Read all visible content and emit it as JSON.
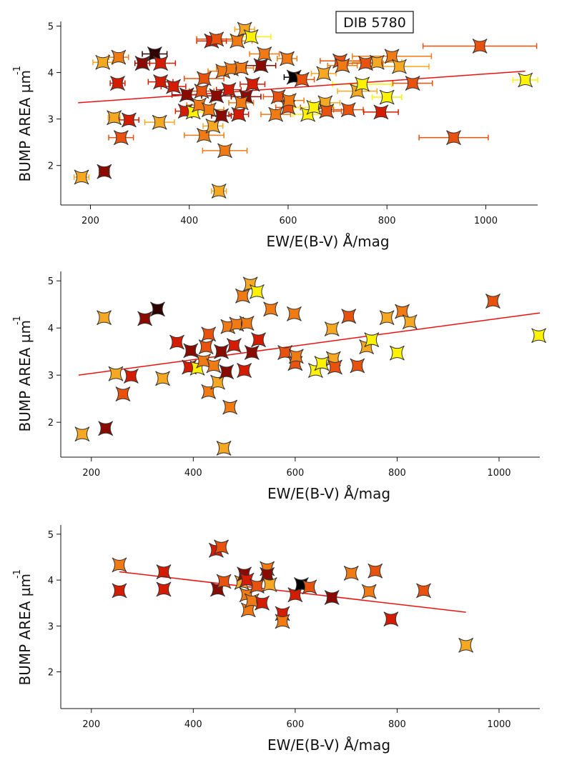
{
  "chart_data": [
    {
      "type": "scatter",
      "annotation": "DIB 5780",
      "x_label": "EW/E(B-V) Å/mag",
      "y_label": "BUMP AREA µm",
      "y_label_sup": "-1",
      "xlim": [
        140,
        1105
      ],
      "ylim": [
        1.15,
        5.1
      ],
      "xticks": [
        200,
        400,
        600,
        800,
        1000
      ],
      "yticks": [
        2,
        3,
        4,
        5
      ],
      "x": [
        182,
        225,
        228,
        248,
        262,
        278,
        305,
        330,
        340,
        368,
        392,
        395,
        408,
        420,
        425,
        430,
        430,
        440,
        448,
        455,
        460,
        465,
        468,
        472,
        480,
        485,
        497,
        500,
        505,
        512,
        515,
        525,
        528,
        552,
        580,
        598,
        600,
        602,
        640,
        652,
        672,
        675,
        678,
        705,
        722,
        740,
        750,
        780,
        800,
        810,
        825,
        988,
        1080,
        255,
        257,
        342,
        342,
        445,
        455,
        545,
        612,
        628,
        710,
        757,
        788,
        852,
        935,
        575,
        505
      ],
      "y": [
        1.75,
        4.22,
        1.87,
        3.03,
        2.6,
        2.98,
        4.2,
        4.4,
        2.93,
        3.7,
        3.17,
        3.52,
        3.15,
        3.3,
        3.6,
        3.87,
        2.65,
        3.2,
        2.85,
        3.5,
        1.45,
        3.07,
        4.03,
        2.32,
        3.63,
        4.08,
        4.68,
        3.1,
        4.1,
        4.93,
        3.48,
        4.77,
        3.75,
        4.4,
        3.48,
        4.3,
        3.25,
        3.4,
        3.1,
        3.25,
        3.98,
        3.35,
        3.17,
        4.25,
        3.2,
        3.6,
        3.75,
        4.22,
        3.47,
        4.35,
        4.13,
        4.57,
        3.84,
        3.77,
        4.33,
        4.2,
        3.8,
        4.68,
        4.72,
        4.15,
        3.9,
        3.85,
        4.15,
        4.2,
        3.15,
        3.77,
        2.6,
        3.1,
        3.35
      ],
      "xerr": [
        15,
        20,
        10,
        12,
        25,
        20,
        15,
        25,
        30,
        25,
        20,
        30,
        20,
        25,
        25,
        40,
        40,
        30,
        20,
        30,
        15,
        20,
        30,
        45,
        25,
        30,
        30,
        20,
        25,
        20,
        30,
        40,
        25,
        30,
        30,
        20,
        25,
        30,
        30,
        40,
        25,
        30,
        30,
        40,
        30,
        40,
        60,
        50,
        30,
        80,
        60,
        115,
        25,
        15,
        20,
        30,
        25,
        30,
        40,
        30,
        20,
        25,
        30,
        35,
        35,
        40,
        70,
        30,
        25
      ],
      "colors": [
        "#f7a823",
        "#f7a823",
        "#8a0a00",
        "#f7a823",
        "#e8520c",
        "#d61c00",
        "#8a0a00",
        "#300000",
        "#f7a823",
        "#d61c00",
        "#d61c00",
        "#8a0a00",
        "#fff200",
        "#f27a12",
        "#e8520c",
        "#e8520c",
        "#f27a12",
        "#f27a12",
        "#f7a823",
        "#8a0a00",
        "#f7a823",
        "#8a0a00",
        "#f27a12",
        "#f27a12",
        "#d61c00",
        "#f27a12",
        "#f27a12",
        "#d61c00",
        "#f27a12",
        "#f7a823",
        "#8a0a00",
        "#fff200",
        "#d61c00",
        "#f27a12",
        "#e8520c",
        "#f27a12",
        "#e8520c",
        "#f27a12",
        "#fff200",
        "#fff200",
        "#f7a823",
        "#f7a823",
        "#e8520c",
        "#e8520c",
        "#e8520c",
        "#f7a823",
        "#fff200",
        "#f7a823",
        "#fff200",
        "#f27a12",
        "#f7a823",
        "#e8520c",
        "#fff200",
        "#d61c00",
        "#f27a12",
        "#d61c00",
        "#d61c00",
        "#d61c00",
        "#e8520c",
        "#8a0a00",
        "#000000",
        "#e8520c",
        "#f27a12",
        "#e8520c",
        "#d61c00",
        "#e8520c",
        "#e8520c",
        "#f27a12",
        "#f27a12"
      ],
      "fit": {
        "x": [
          175,
          1080
        ],
        "y": [
          3.35,
          4.03
        ],
        "color": "#ee1111"
      }
    },
    {
      "type": "scatter",
      "x_label": "EW/E(B-V) Å/mag",
      "y_label": "BUMP AREA µm",
      "y_label_sup": "-1",
      "xlim": [
        140,
        1080
      ],
      "ylim": [
        1.26,
        5.2
      ],
      "xticks": [
        200,
        400,
        600,
        800,
        1000
      ],
      "yticks": [
        2,
        3,
        4,
        5
      ],
      "x": [
        182,
        225,
        228,
        248,
        262,
        278,
        305,
        330,
        340,
        368,
        392,
        395,
        408,
        420,
        425,
        430,
        430,
        440,
        448,
        455,
        460,
        465,
        468,
        472,
        480,
        485,
        497,
        500,
        505,
        512,
        515,
        525,
        528,
        552,
        580,
        598,
        600,
        602,
        640,
        652,
        672,
        675,
        678,
        705,
        722,
        740,
        750,
        780,
        800,
        810,
        825,
        988,
        1078
      ],
      "y": [
        1.75,
        4.22,
        1.87,
        3.03,
        2.6,
        2.98,
        4.2,
        4.4,
        2.93,
        3.7,
        3.17,
        3.52,
        3.15,
        3.3,
        3.6,
        3.87,
        2.65,
        3.2,
        2.85,
        3.5,
        1.45,
        3.07,
        4.03,
        2.32,
        3.63,
        4.08,
        4.68,
        3.1,
        4.1,
        4.93,
        3.48,
        4.77,
        3.75,
        4.4,
        3.48,
        4.3,
        3.25,
        3.4,
        3.1,
        3.25,
        3.98,
        3.35,
        3.17,
        4.25,
        3.2,
        3.6,
        3.75,
        4.22,
        3.47,
        4.35,
        4.13,
        4.57,
        3.84
      ],
      "colors": [
        "#f7a823",
        "#f7a823",
        "#8a0a00",
        "#f7a823",
        "#e8520c",
        "#d61c00",
        "#8a0a00",
        "#300000",
        "#f7a823",
        "#d61c00",
        "#d61c00",
        "#8a0a00",
        "#fff200",
        "#f27a12",
        "#e8520c",
        "#e8520c",
        "#f27a12",
        "#f27a12",
        "#f7a823",
        "#8a0a00",
        "#f7a823",
        "#8a0a00",
        "#f27a12",
        "#f27a12",
        "#d61c00",
        "#f27a12",
        "#f27a12",
        "#d61c00",
        "#f27a12",
        "#f7a823",
        "#8a0a00",
        "#fff200",
        "#d61c00",
        "#f27a12",
        "#e8520c",
        "#f27a12",
        "#e8520c",
        "#f27a12",
        "#fff200",
        "#fff200",
        "#f7a823",
        "#f7a823",
        "#e8520c",
        "#e8520c",
        "#e8520c",
        "#f7a823",
        "#fff200",
        "#f7a823",
        "#fff200",
        "#f27a12",
        "#f7a823",
        "#e8520c",
        "#fff200"
      ],
      "fit": {
        "x": [
          175,
          1080
        ],
        "y": [
          3.0,
          4.32
        ],
        "color": "#ee1111"
      }
    },
    {
      "type": "scatter",
      "x_label": "EW/E(B-V) Å/mag",
      "y_label": "BUMP AREA µm",
      "y_label_sup": "-1",
      "xlim": [
        140,
        1080
      ],
      "ylim": [
        1.2,
        5.2
      ],
      "xticks": [
        200,
        400,
        600,
        800,
        1000
      ],
      "yticks": [
        2,
        3,
        4,
        5
      ],
      "x": [
        255,
        255,
        342,
        342,
        445,
        448,
        455,
        460,
        495,
        500,
        505,
        505,
        508,
        515,
        525,
        535,
        545,
        545,
        550,
        575,
        575,
        600,
        612,
        628,
        672,
        710,
        745,
        757,
        788,
        852,
        935
      ],
      "y": [
        4.33,
        3.77,
        4.18,
        3.8,
        4.65,
        3.8,
        4.72,
        3.97,
        3.95,
        4.13,
        3.68,
        4.0,
        3.35,
        3.55,
        3.87,
        3.5,
        4.25,
        4.12,
        3.9,
        3.27,
        3.1,
        3.68,
        3.9,
        3.85,
        3.62,
        4.15,
        3.75,
        4.2,
        3.15,
        3.77,
        2.58
      ],
      "colors": [
        "#f27a12",
        "#d61c00",
        "#d61c00",
        "#d61c00",
        "#d61c00",
        "#8a0a00",
        "#e8520c",
        "#e8520c",
        "#f7a823",
        "#8a0a00",
        "#f27a12",
        "#d61c00",
        "#f27a12",
        "#f27a12",
        "#e8520c",
        "#d61c00",
        "#f27a12",
        "#8a0a00",
        "#f7a823",
        "#d61c00",
        "#f27a12",
        "#d61c00",
        "#000000",
        "#e8520c",
        "#8a0a00",
        "#f27a12",
        "#f27a12",
        "#e8520c",
        "#d61c00",
        "#e8520c",
        "#f7a823"
      ],
      "fit": {
        "x": [
          255,
          935
        ],
        "y": [
          4.18,
          3.3
        ],
        "color": "#ee1111"
      }
    }
  ]
}
